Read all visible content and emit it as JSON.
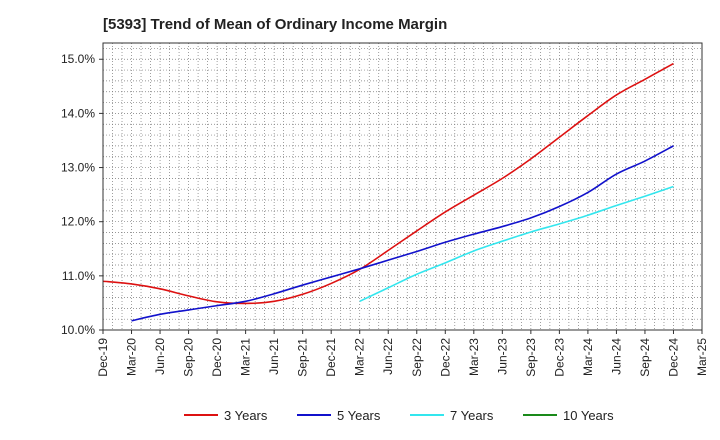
{
  "chart_data": {
    "type": "line",
    "title": "[5393]  Trend of Mean of Ordinary Income Margin",
    "xlabel": "",
    "ylabel": "",
    "ylim": [
      10.0,
      15.3
    ],
    "y_ticks": [
      10.0,
      11.0,
      12.0,
      13.0,
      14.0,
      15.0
    ],
    "y_tick_labels": [
      "10.0%",
      "11.0%",
      "12.0%",
      "13.0%",
      "14.0%",
      "15.0%"
    ],
    "categories": [
      "Dec-19",
      "Mar-20",
      "Jun-20",
      "Sep-20",
      "Dec-20",
      "Mar-21",
      "Jun-21",
      "Sep-21",
      "Dec-21",
      "Mar-22",
      "Jun-22",
      "Sep-22",
      "Dec-22",
      "Mar-23",
      "Jun-23",
      "Sep-23",
      "Dec-23",
      "Mar-24",
      "Jun-24",
      "Sep-24",
      "Dec-24",
      "Mar-25"
    ],
    "grid": true,
    "legend_position": "bottom",
    "series": [
      {
        "name": "3 Years",
        "color": "#dd1111",
        "values": [
          10.9,
          10.85,
          10.76,
          10.63,
          10.52,
          10.49,
          10.53,
          10.66,
          10.86,
          11.12,
          11.47,
          11.83,
          12.18,
          12.49,
          12.8,
          13.16,
          13.56,
          13.96,
          14.34,
          14.63,
          14.92,
          null
        ]
      },
      {
        "name": "5 Years",
        "color": "#1111cc",
        "values": [
          null,
          10.17,
          10.29,
          10.37,
          10.45,
          10.53,
          10.67,
          10.83,
          10.98,
          11.13,
          11.29,
          11.45,
          11.62,
          11.77,
          11.91,
          12.07,
          12.28,
          12.54,
          12.88,
          13.12,
          13.4,
          null
        ]
      },
      {
        "name": "7 Years",
        "color": "#33e6ee",
        "values": [
          null,
          null,
          null,
          null,
          null,
          null,
          null,
          null,
          null,
          10.53,
          10.78,
          11.03,
          11.24,
          11.46,
          11.64,
          11.81,
          11.96,
          12.12,
          12.3,
          12.47,
          12.65,
          null
        ]
      },
      {
        "name": "10 Years",
        "color": "#1a8a1a",
        "values": [
          null,
          null,
          null,
          null,
          null,
          null,
          null,
          null,
          null,
          null,
          null,
          null,
          null,
          null,
          null,
          null,
          null,
          null,
          null,
          null,
          null,
          null
        ]
      }
    ]
  }
}
